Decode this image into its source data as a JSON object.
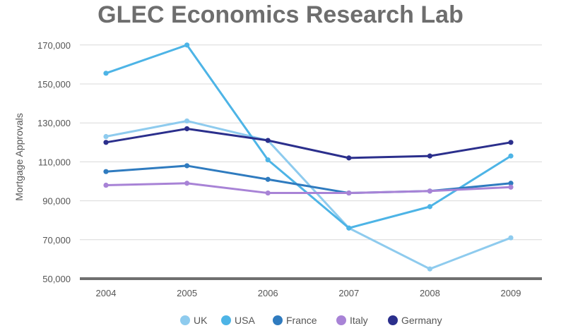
{
  "chart_data": {
    "type": "line",
    "title": "GLEC Economics Research Lab",
    "xlabel": "",
    "ylabel": "Mortgage Approvals",
    "categories": [
      "2004",
      "2005",
      "2006",
      "2007",
      "2008",
      "2009"
    ],
    "y_ticks": [
      "50,000",
      "70,000",
      "90,000",
      "110,000",
      "130,000",
      "150,000",
      "170,000"
    ],
    "ylim": [
      50000,
      175000
    ],
    "grid": true,
    "legend": "bottom",
    "series": [
      {
        "name": "UK",
        "color": "#8ecbee",
        "values": [
          123000,
          131000,
          121000,
          76000,
          55000,
          71000
        ]
      },
      {
        "name": "USA",
        "color": "#4db4e6",
        "values": [
          155500,
          170000,
          111000,
          76000,
          87000,
          113000
        ]
      },
      {
        "name": "France",
        "color": "#2f7bbf",
        "values": [
          105000,
          108000,
          101000,
          94000,
          95000,
          99000
        ]
      },
      {
        "name": "Italy",
        "color": "#a883d6",
        "values": [
          98000,
          99000,
          94000,
          94000,
          95000,
          97000
        ]
      },
      {
        "name": "Germany",
        "color": "#2b2f8c",
        "values": [
          120000,
          127000,
          121000,
          112000,
          113000,
          120000
        ]
      }
    ]
  }
}
